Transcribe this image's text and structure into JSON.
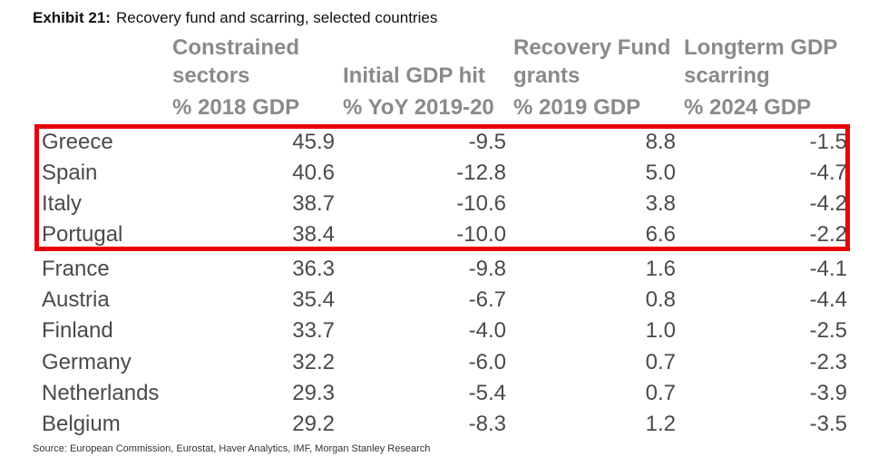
{
  "exhibit": {
    "number": "Exhibit 21:",
    "title": "Recovery fund and scarring, selected countries"
  },
  "headers": [
    {
      "line1": "Constrained",
      "line2": "sectors",
      "unit": "% 2018 GDP"
    },
    {
      "line1": "",
      "line2": "Initial GDP hit",
      "unit": "% YoY 2019-20"
    },
    {
      "line1": "Recovery Fund",
      "line2": "grants",
      "unit": "% 2019 GDP"
    },
    {
      "line1": "Longterm GDP",
      "line2": "scarring",
      "unit": "% 2024 GDP"
    }
  ],
  "rows": [
    {
      "country": "Greece",
      "constrained": "45.9",
      "gdp_hit": "-9.5",
      "grants": "8.8",
      "scarring": "-1.5"
    },
    {
      "country": "Spain",
      "constrained": "40.6",
      "gdp_hit": "-12.8",
      "grants": "5.0",
      "scarring": "-4.7"
    },
    {
      "country": "Italy",
      "constrained": "38.7",
      "gdp_hit": "-10.6",
      "grants": "3.8",
      "scarring": "-4.2"
    },
    {
      "country": "Portugal",
      "constrained": "38.4",
      "gdp_hit": "-10.0",
      "grants": "6.6",
      "scarring": "-2.2"
    },
    {
      "country": "France",
      "constrained": "36.3",
      "gdp_hit": "-9.8",
      "grants": "1.6",
      "scarring": "-4.1"
    },
    {
      "country": "Austria",
      "constrained": "35.4",
      "gdp_hit": "-6.7",
      "grants": "0.8",
      "scarring": "-4.4"
    },
    {
      "country": "Finland",
      "constrained": "33.7",
      "gdp_hit": "-4.0",
      "grants": "1.0",
      "scarring": "-2.5"
    },
    {
      "country": "Germany",
      "constrained": "32.2",
      "gdp_hit": "-6.0",
      "grants": "0.7",
      "scarring": "-2.3"
    },
    {
      "country": "Netherlands",
      "constrained": "29.3",
      "gdp_hit": "-5.4",
      "grants": "0.7",
      "scarring": "-3.9"
    },
    {
      "country": "Belgium",
      "constrained": "29.2",
      "gdp_hit": "-8.3",
      "grants": "1.2",
      "scarring": "-3.5"
    }
  ],
  "source": "Source: European Commission, Eurostat, Haver Analytics, IMF, Morgan Stanley Research",
  "colors": {
    "highlight": "#e8000b",
    "header": "#8a8a8a",
    "body": "#4a4a4a"
  }
}
